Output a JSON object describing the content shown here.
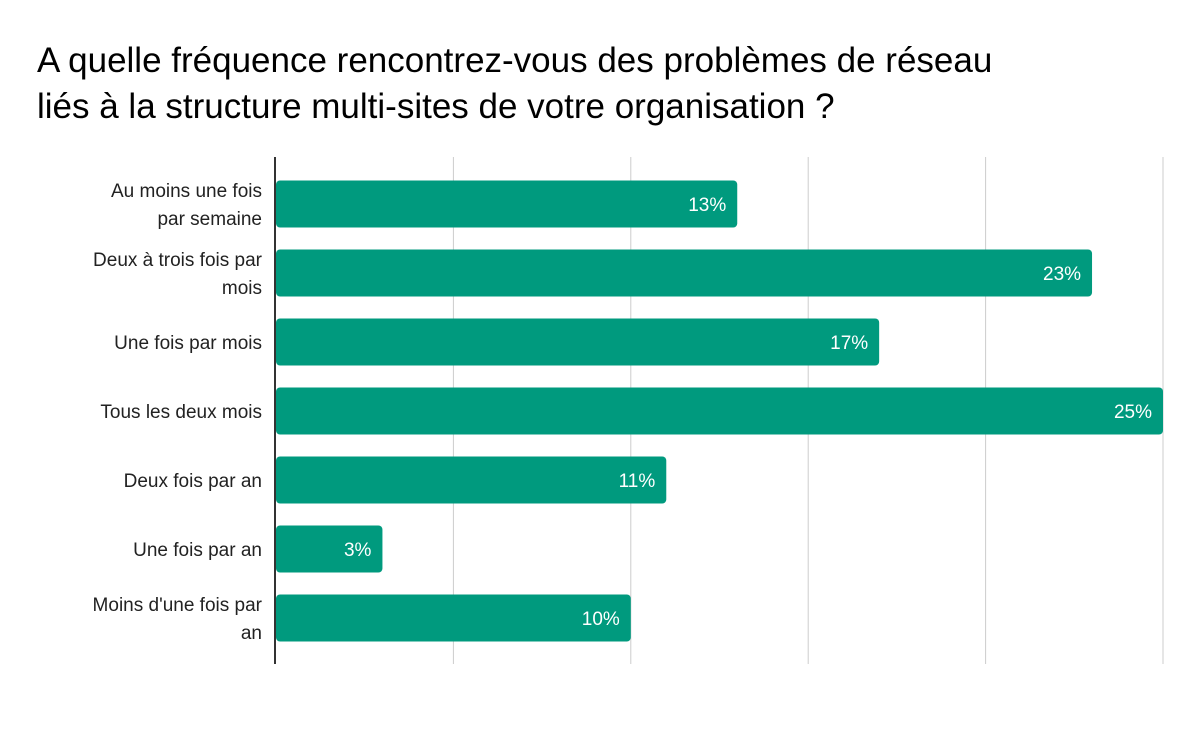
{
  "chart_data": {
    "type": "bar",
    "orientation": "horizontal",
    "title_lines": [
      "A quelle fréquence rencontrez-vous des problèmes de réseau",
      "liés à la structure multi-sites de votre organisation ?"
    ],
    "categories": [
      [
        "Au moins une fois",
        "par semaine"
      ],
      [
        "Deux à trois fois par",
        "mois"
      ],
      [
        "Une fois par mois"
      ],
      [
        "Tous les deux mois"
      ],
      [
        "Deux fois par an"
      ],
      [
        "Une fois par an"
      ],
      [
        "Moins d'une fois par",
        "an"
      ]
    ],
    "values": [
      13,
      23,
      17,
      25,
      11,
      3,
      10
    ],
    "value_labels": [
      "13%",
      "23%",
      "17%",
      "25%",
      "11%",
      "3%",
      "10%"
    ],
    "xlim": [
      0,
      25
    ],
    "gridlines": [
      0,
      5,
      10,
      15,
      20,
      25
    ],
    "bar_color": "#009a7e",
    "grid_color": "#cccccc",
    "axis_color": "#333333"
  }
}
